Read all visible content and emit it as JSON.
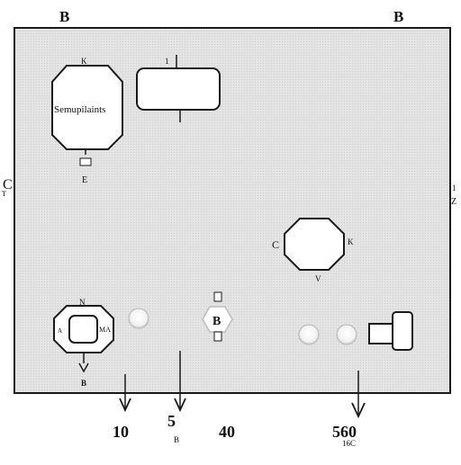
{
  "corner_labels": {
    "top_left": "B",
    "top_right": "B",
    "left": "C",
    "left_small": "T",
    "right": "1",
    "right_small": "Z"
  },
  "top_left_component": {
    "label": "Semupilaints",
    "tag_top": "K",
    "tag_bottom": "E"
  },
  "top_center_component": {
    "tag_top": "1"
  },
  "right_component": {
    "tag_left": "C",
    "tag_right": "K",
    "tag_bottom": "V"
  },
  "bottom_left_component": {
    "tag_top": "N",
    "tag_left": "A",
    "tag_right": "MA",
    "tag_bottom": "B"
  },
  "bottom_center_component": {
    "label": "B"
  },
  "axis_labels": {
    "l10": "10",
    "l5": "5",
    "l5_sub": "B",
    "l40": "40",
    "l560": "560",
    "l560_sub": "16C"
  },
  "colors": {
    "panel_fill": "#e2e2e2",
    "stroke": "#1a1a1a",
    "shape_fill": "#ffffff"
  }
}
